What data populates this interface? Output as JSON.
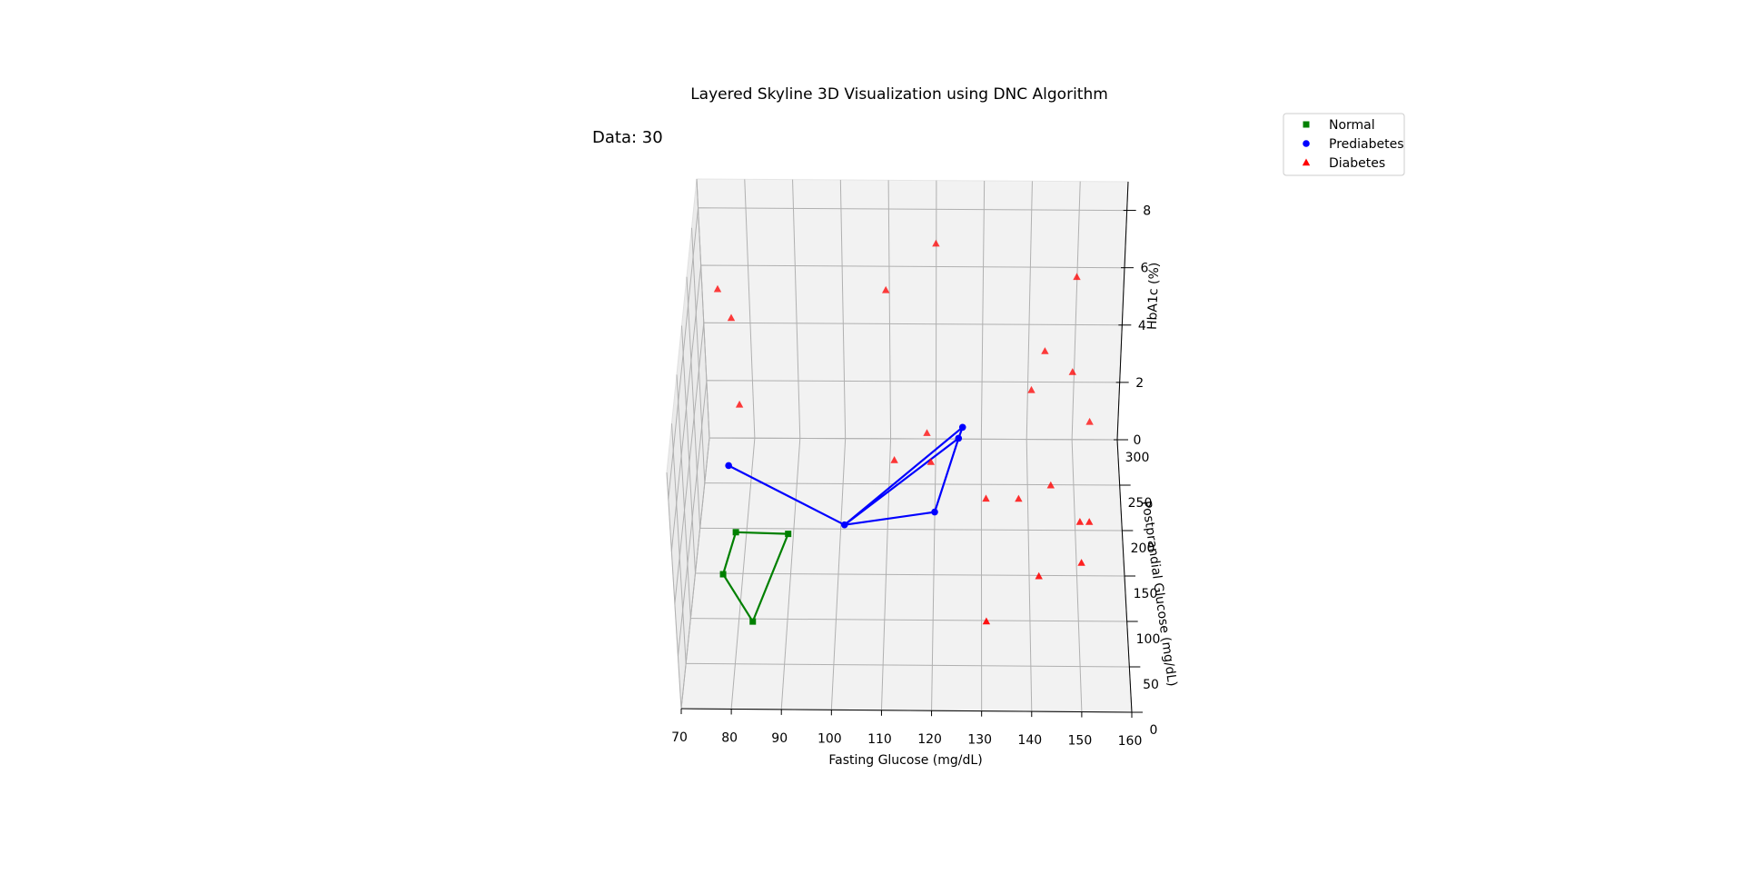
{
  "chart_data": {
    "type": "scatter",
    "projection": "3d",
    "title": "Layered Skyline 3D Visualization using DNC Algorithm",
    "annotation": "Data: 30",
    "xlabel": "Fasting Glucose (mg/dL)",
    "ylabel": "Postprandial Glucose (mg/dL)",
    "zlabel": "HbA1c (%)",
    "xlim": [
      70,
      160
    ],
    "ylim": [
      0,
      300
    ],
    "zlim": [
      0,
      9
    ],
    "xticks": [
      "70",
      "80",
      "90",
      "100",
      "110",
      "120",
      "130",
      "140",
      "150",
      "160"
    ],
    "yticks": [
      "0",
      "50",
      "100",
      "150",
      "200",
      "250",
      "300"
    ],
    "zticks": [
      "0",
      "2",
      "4",
      "6",
      "8"
    ],
    "grid": true,
    "legend_position": "top-right",
    "series": [
      {
        "name": "Normal",
        "marker": "square",
        "color": "#008000",
        "points": [
          {
            "x": 83,
            "y": 88,
            "z": 0.3
          },
          {
            "x": 89,
            "y": 185,
            "z": 0.3
          },
          {
            "x": 76,
            "y": 140,
            "z": 0.3
          },
          {
            "x": 79,
            "y": 120,
            "z": 2.5
          }
        ],
        "skyline_path": [
          0,
          2,
          3,
          1,
          0
        ]
      },
      {
        "name": "Prediabetes",
        "marker": "circle",
        "color": "#0000ff",
        "points": [
          {
            "x": 101,
            "y": 180,
            "z": 0.8
          },
          {
            "x": 75,
            "y": 260,
            "z": 0.3
          },
          {
            "x": 125,
            "y": 285,
            "z": 0.5
          },
          {
            "x": 126,
            "y": 190,
            "z": 4.0
          },
          {
            "x": 120,
            "y": 210,
            "z": 0.3
          }
        ],
        "skyline_path": [
          1,
          0,
          2,
          3,
          0,
          4,
          2
        ]
      },
      {
        "name": "Diabetes",
        "marker": "triangle",
        "color": "#ff0000",
        "points": [
          {
            "x": 72,
            "y": 290,
            "z": 5.5
          },
          {
            "x": 75,
            "y": 290,
            "z": 4.5
          },
          {
            "x": 77,
            "y": 280,
            "z": 1.8
          },
          {
            "x": 109,
            "y": 290,
            "z": 5.5
          },
          {
            "x": 120,
            "y": 300,
            "z": 6.8
          },
          {
            "x": 151,
            "y": 290,
            "z": 6.0
          },
          {
            "x": 144,
            "y": 290,
            "z": 3.4
          },
          {
            "x": 150,
            "y": 280,
            "z": 3.0
          },
          {
            "x": 141,
            "y": 285,
            "z": 2.2
          },
          {
            "x": 111,
            "y": 270,
            "z": 0.2
          },
          {
            "x": 119,
            "y": 265,
            "z": 0.3
          },
          {
            "x": 118,
            "y": 300,
            "z": 0.2
          },
          {
            "x": 154,
            "y": 310,
            "z": 0.3
          },
          {
            "x": 131,
            "y": 225,
            "z": 0.3
          },
          {
            "x": 138,
            "y": 225,
            "z": 0.3
          },
          {
            "x": 145,
            "y": 240,
            "z": 0.3
          },
          {
            "x": 151,
            "y": 200,
            "z": 0.3
          },
          {
            "x": 153,
            "y": 200,
            "z": 0.3
          },
          {
            "x": 151,
            "y": 155,
            "z": 0.3
          },
          {
            "x": 142,
            "y": 140,
            "z": 0.3
          },
          {
            "x": 131,
            "y": 90,
            "z": 0.3
          }
        ]
      }
    ]
  }
}
